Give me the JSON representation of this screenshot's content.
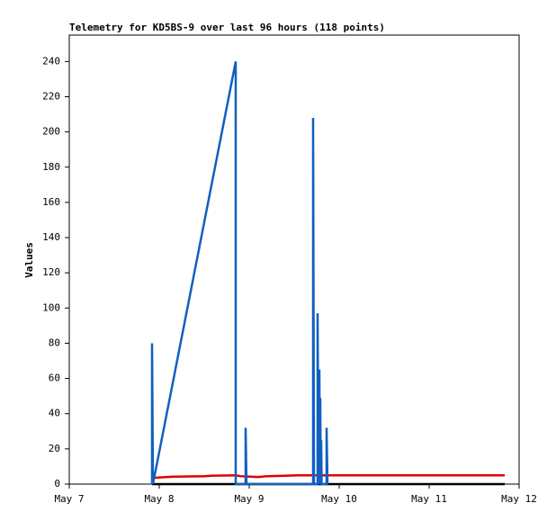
{
  "chart_data": {
    "type": "line",
    "title": "Telemetry for KD5BS-9 over last 96 hours (118 points)",
    "y_label": "Values",
    "xlim": [
      7,
      12
    ],
    "xticks": [
      {
        "value": 7,
        "label": "May 7"
      },
      {
        "value": 8,
        "label": "May 8"
      },
      {
        "value": 9,
        "label": "May 9"
      },
      {
        "value": 10,
        "label": "May 10"
      },
      {
        "value": 11,
        "label": "May 11"
      },
      {
        "value": 12,
        "label": "May 12"
      }
    ],
    "ylim": [
      0,
      255
    ],
    "yticks": [
      0,
      20,
      40,
      60,
      80,
      100,
      120,
      140,
      160,
      180,
      200,
      220,
      240
    ],
    "grid": false,
    "series": [
      {
        "color": "#000000",
        "x": [
          7.92,
          11.84
        ],
        "values": [
          0,
          0
        ]
      },
      {
        "color": "#e00000",
        "x": [
          7.92,
          8.15,
          8.5,
          8.6,
          8.85,
          8.9,
          9.1,
          9.2,
          9.55,
          9.7,
          11.84
        ],
        "values": [
          3.5,
          4.2,
          4.5,
          4.8,
          5,
          4.5,
          4,
          4.5,
          5,
          5,
          5
        ]
      },
      {
        "color": "#1060c0",
        "x": [
          7.92,
          7.92,
          7.93,
          8.85,
          8.85,
          8.96,
          8.96,
          8.97,
          9.71,
          9.71,
          9.72,
          9.76,
          9.76,
          9.77,
          9.78,
          9.785,
          9.79,
          9.795,
          9.8,
          9.805,
          9.86,
          9.86,
          9.87
        ],
        "values": [
          0,
          80,
          0,
          240,
          0,
          0,
          32,
          0,
          0,
          208,
          0,
          0,
          97,
          0,
          65,
          0,
          49,
          0,
          25,
          0,
          0,
          32,
          0
        ]
      }
    ]
  }
}
